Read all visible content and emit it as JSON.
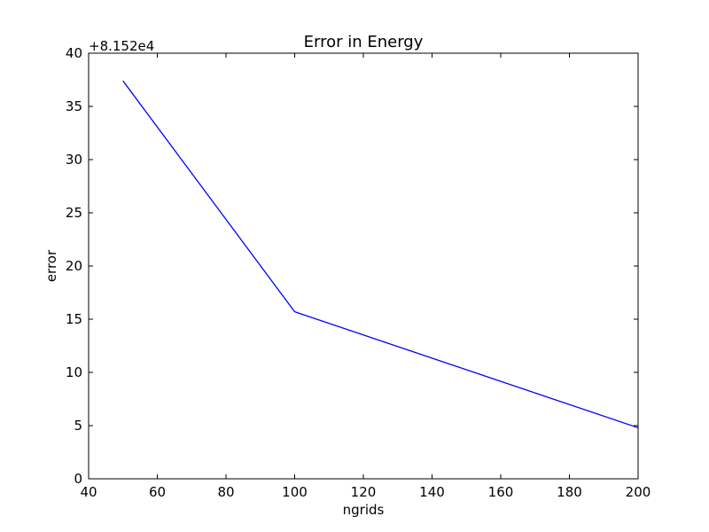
{
  "chart_data": {
    "type": "line",
    "title": "Error in Energy",
    "xlabel": "ngrids",
    "ylabel": "error",
    "offset_label": "+8.152e4",
    "xlim": [
      40,
      200
    ],
    "ylim": [
      0,
      40
    ],
    "x_ticks": [
      40,
      60,
      80,
      100,
      120,
      140,
      160,
      180,
      200
    ],
    "y_ticks": [
      0,
      5,
      10,
      15,
      20,
      25,
      30,
      35,
      40
    ],
    "grid": false,
    "series": [
      {
        "color": "#0000ff",
        "x": [
          50,
          100,
          200
        ],
        "y": [
          37.4,
          15.7,
          4.8
        ]
      }
    ]
  }
}
